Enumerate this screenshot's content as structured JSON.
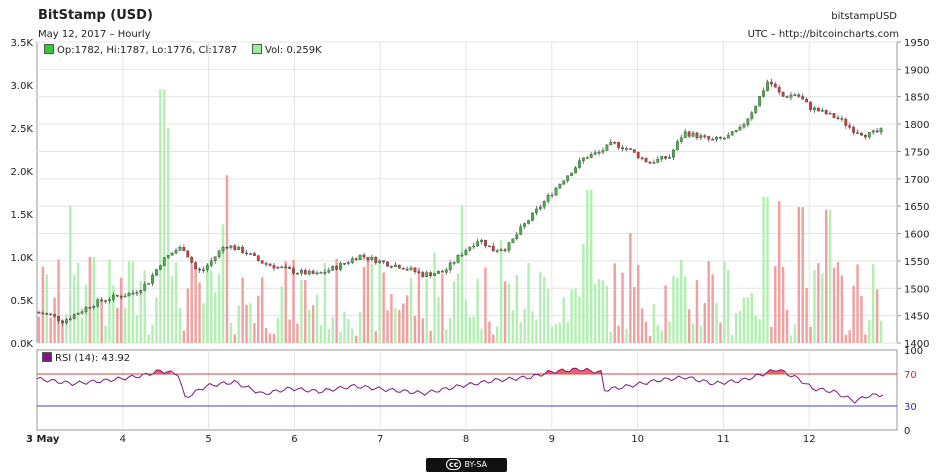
{
  "header": {
    "title": "BitStamp (USD)",
    "subtitle": "May 12, 2017 – Hourly",
    "symbol": "bitstampUSD",
    "source": "UTC – http://bitcoincharts.com"
  },
  "legend": {
    "ohlc": "Op:1782, Hi:1787, Lo:1776, Cl:1787",
    "volume": "Vol: 0.259K",
    "rsi": "RSI (14): 43.92"
  },
  "badge": {
    "cc": "cc",
    "text": "BY-SA"
  },
  "colors": {
    "up": "#3fb93f",
    "down": "#d63c3c",
    "vol_up": "#b3eeb3",
    "vol_down": "#f0a0a0",
    "rsi_line": "#7a1a7a",
    "rsi_fill": "#f05050",
    "grid": "#e4e4e4",
    "ohlc_swatch": "#33cc33",
    "vol_swatch": "#99ee99",
    "rsi_swatch": "#7a1a7a"
  },
  "chart_data": {
    "type": "candlestick",
    "x_labels": [
      "3 May",
      "4",
      "5",
      "6",
      "7",
      "8",
      "9",
      "10",
      "11",
      "12"
    ],
    "price_axis": {
      "side": "right",
      "range": [
        1400,
        1950
      ],
      "ticks": [
        1400,
        1450,
        1500,
        1550,
        1600,
        1650,
        1700,
        1750,
        1800,
        1850,
        1900,
        1950
      ]
    },
    "volume_axis": {
      "side": "left",
      "range": [
        0,
        3500
      ],
      "ticks": [
        "0.0K",
        "0.5K",
        "1.0K",
        "1.5K",
        "2.0K",
        "2.5K",
        "3.0K",
        "3.5K"
      ]
    },
    "close_path": [
      [
        0,
        1456
      ],
      [
        0.2,
        1452
      ],
      [
        0.4,
        1440
      ],
      [
        0.6,
        1455
      ],
      [
        0.8,
        1470
      ],
      [
        1.0,
        1480
      ],
      [
        1.2,
        1486
      ],
      [
        1.4,
        1492
      ],
      [
        1.6,
        1510
      ],
      [
        1.8,
        1550
      ],
      [
        2.0,
        1570
      ],
      [
        2.1,
        1575
      ],
      [
        2.3,
        1530
      ],
      [
        2.4,
        1535
      ],
      [
        2.7,
        1580
      ],
      [
        3.0,
        1565
      ],
      [
        3.2,
        1548
      ],
      [
        3.4,
        1540
      ],
      [
        3.7,
        1530
      ],
      [
        4.0,
        1525
      ],
      [
        4.3,
        1540
      ],
      [
        4.6,
        1560
      ],
      [
        5.0,
        1545
      ],
      [
        5.2,
        1540
      ],
      [
        5.5,
        1525
      ],
      [
        5.8,
        1530
      ],
      [
        6.1,
        1570
      ],
      [
        6.3,
        1590
      ],
      [
        6.5,
        1570
      ],
      [
        6.7,
        1575
      ],
      [
        6.9,
        1610
      ],
      [
        7.1,
        1640
      ],
      [
        7.3,
        1670
      ],
      [
        7.5,
        1700
      ],
      [
        7.8,
        1740
      ],
      [
        8.0,
        1748
      ],
      [
        8.2,
        1765
      ],
      [
        8.4,
        1755
      ],
      [
        8.7,
        1730
      ],
      [
        9.0,
        1740
      ],
      [
        9.2,
        1785
      ],
      [
        9.4,
        1778
      ],
      [
        9.6,
        1770
      ],
      [
        9.8,
        1775
      ],
      [
        10.0,
        1790
      ],
      [
        10.2,
        1830
      ],
      [
        10.4,
        1880
      ],
      [
        10.6,
        1850
      ],
      [
        10.8,
        1855
      ],
      [
        11.0,
        1830
      ],
      [
        11.2,
        1820
      ],
      [
        11.4,
        1810
      ],
      [
        11.6,
        1790
      ],
      [
        11.8,
        1780
      ],
      [
        12.0,
        1787
      ]
    ],
    "volume_spikes": [
      [
        0.45,
        1600
      ],
      [
        0.75,
        1000
      ],
      [
        1.3,
        950
      ],
      [
        1.75,
        2950
      ],
      [
        1.85,
        2500
      ],
      [
        2.6,
        1380
      ],
      [
        2.65,
        1950
      ],
      [
        4.9,
        820
      ],
      [
        5.6,
        1050
      ],
      [
        6.0,
        1600
      ],
      [
        6.55,
        1200
      ],
      [
        7.7,
        1150
      ],
      [
        7.8,
        1780
      ],
      [
        8.4,
        1280
      ],
      [
        9.5,
        950
      ],
      [
        10.3,
        1700
      ],
      [
        10.5,
        1650
      ],
      [
        10.8,
        1580
      ],
      [
        11.0,
        850
      ],
      [
        11.2,
        1550
      ]
    ],
    "volume_baseline": [
      80,
      1000
    ],
    "last_volume": 259,
    "rsi": {
      "label": "RSI (14): 43.92",
      "axis_ticks": [
        0,
        30,
        70,
        100
      ],
      "upper": 70,
      "lower": 30,
      "last": 43.92,
      "path": [
        [
          0,
          64
        ],
        [
          0.5,
          58
        ],
        [
          1.0,
          62
        ],
        [
          1.5,
          68
        ],
        [
          1.75,
          74
        ],
        [
          2.0,
          70
        ],
        [
          2.1,
          40
        ],
        [
          2.4,
          55
        ],
        [
          2.8,
          60
        ],
        [
          3.2,
          45
        ],
        [
          3.6,
          52
        ],
        [
          4.0,
          48
        ],
        [
          4.5,
          55
        ],
        [
          5.0,
          50
        ],
        [
          5.5,
          46
        ],
        [
          6.0,
          55
        ],
        [
          6.5,
          62
        ],
        [
          7.0,
          66
        ],
        [
          7.3,
          73
        ],
        [
          7.7,
          76
        ],
        [
          8.0,
          72
        ],
        [
          8.05,
          50
        ],
        [
          8.4,
          55
        ],
        [
          8.8,
          62
        ],
        [
          9.2,
          66
        ],
        [
          9.6,
          58
        ],
        [
          10.0,
          62
        ],
        [
          10.3,
          70
        ],
        [
          10.5,
          76
        ],
        [
          10.8,
          64
        ],
        [
          11.0,
          52
        ],
        [
          11.3,
          48
        ],
        [
          11.6,
          36
        ],
        [
          11.8,
          43
        ],
        [
          12.0,
          43.92
        ]
      ]
    }
  }
}
